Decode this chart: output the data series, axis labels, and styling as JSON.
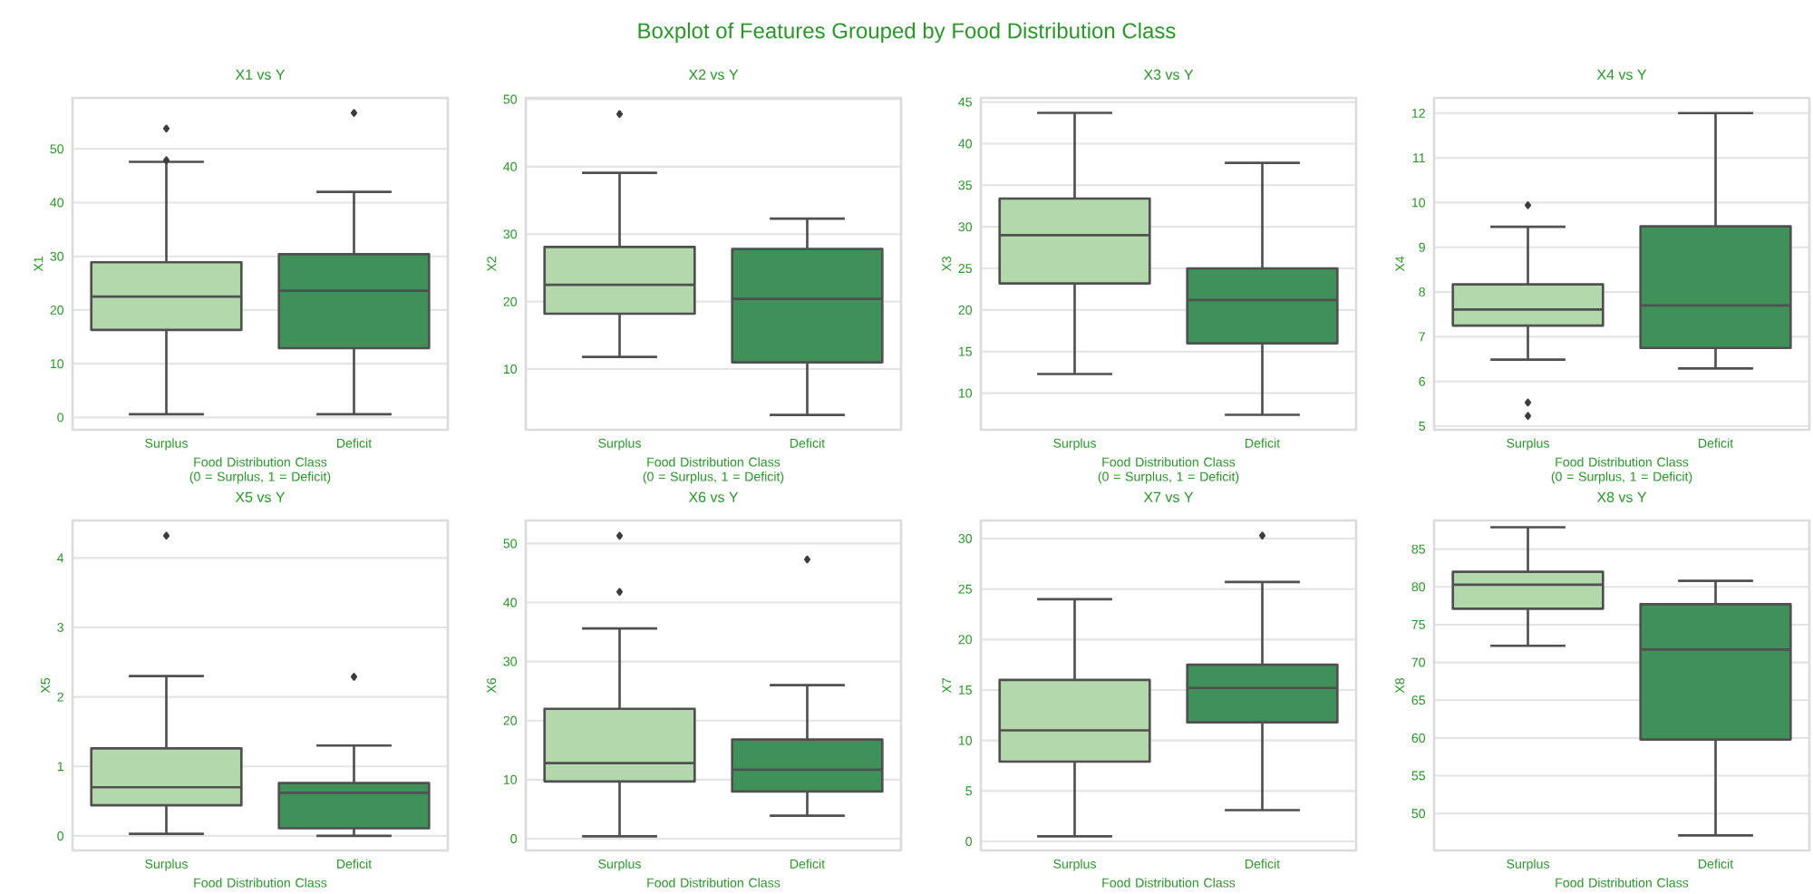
{
  "chart_data": [
    {
      "type": "box",
      "title": "X1 vs Y",
      "xlabel": "Food Distribution Class (0 = Surplus, 1 = Deficit)",
      "ylabel": "X1",
      "annotations": [
        "Boxplot of Features Grouped by Food Distribution Class"
      ],
      "categories": [
        "Surplus",
        "Deficit"
      ],
      "colors": [
        "#b2d8ab",
        "#3f9159"
      ],
      "ylim": [
        -2.3,
        59.5
      ],
      "yticks": [
        0,
        10,
        20,
        30,
        40,
        50
      ],
      "grid": "y",
      "marker": "diamond",
      "boxes": [
        {
          "low": 0.6,
          "q1": 16.3,
          "median": 22.5,
          "q3": 28.9,
          "high": 47.6,
          "outliers": [
            53.8,
            47.9
          ]
        },
        {
          "low": 0.6,
          "q1": 12.9,
          "median": 23.6,
          "q3": 30.4,
          "high": 42.0,
          "outliers": [
            56.7
          ]
        }
      ]
    },
    {
      "type": "box",
      "title": "X2 vs Y",
      "xlabel": "Food Distribution Class (0 = Surplus, 1 = Deficit)",
      "ylabel": "X2",
      "categories": [
        "Surplus",
        "Deficit"
      ],
      "colors": [
        "#b2d8ab",
        "#3f9159"
      ],
      "ylim": [
        1,
        50.2
      ],
      "yticks": [
        10,
        20,
        30,
        40,
        50
      ],
      "grid": "y",
      "marker": "diamond",
      "boxes": [
        {
          "low": 11.8,
          "q1": 18.2,
          "median": 22.5,
          "q3": 28.1,
          "high": 39.1,
          "outliers": [
            47.8
          ]
        },
        {
          "low": 3.2,
          "q1": 11.0,
          "median": 20.4,
          "q3": 27.8,
          "high": 32.3
        }
      ]
    },
    {
      "type": "box",
      "title": "X3 vs Y",
      "xlabel": "Food Distribution Class (0 = Surplus, 1 = Deficit)",
      "ylabel": "X3",
      "categories": [
        "Surplus",
        "Deficit"
      ],
      "colors": [
        "#b2d8ab",
        "#3f9159"
      ],
      "ylim": [
        5.6,
        45.5
      ],
      "yticks": [
        10,
        15,
        20,
        25,
        30,
        35,
        40,
        45
      ],
      "grid": "y",
      "marker": "diamond",
      "boxes": [
        {
          "low": 12.3,
          "q1": 23.2,
          "median": 29.0,
          "q3": 33.4,
          "high": 43.7
        },
        {
          "low": 7.4,
          "q1": 16.0,
          "median": 21.2,
          "q3": 25.0,
          "high": 37.7
        }
      ]
    },
    {
      "type": "box",
      "title": "X4 vs Y",
      "xlabel": "Food Distribution Class (0 = Surplus, 1 = Deficit)",
      "ylabel": "X4",
      "categories": [
        "Surplus",
        "Deficit"
      ],
      "colors": [
        "#b2d8ab",
        "#3f9159"
      ],
      "ylim": [
        4.92,
        12.34
      ],
      "yticks": [
        5,
        6,
        7,
        8,
        9,
        10,
        11,
        12
      ],
      "grid": "y",
      "marker": "diamond",
      "boxes": [
        {
          "low": 6.49,
          "q1": 7.25,
          "median": 7.61,
          "q3": 8.17,
          "high": 9.46,
          "outliers": [
            9.94,
            5.53,
            5.23
          ]
        },
        {
          "low": 6.29,
          "q1": 6.75,
          "median": 7.7,
          "q3": 9.47,
          "high": 12.0
        }
      ]
    },
    {
      "type": "box",
      "title": "X5 vs Y",
      "xlabel": "Food Distribution Class",
      "ylabel": "X5",
      "categories": [
        "Surplus",
        "Deficit"
      ],
      "colors": [
        "#b2d8ab",
        "#3f9159"
      ],
      "ylim": [
        -0.21,
        4.54
      ],
      "yticks": [
        0,
        1,
        2,
        3,
        4
      ],
      "grid": "y",
      "marker": "diamond",
      "boxes": [
        {
          "low": 0.03,
          "q1": 0.44,
          "median": 0.7,
          "q3": 1.26,
          "high": 2.3,
          "outliers": [
            4.32
          ]
        },
        {
          "low": 0.0,
          "q1": 0.11,
          "median": 0.62,
          "q3": 0.76,
          "high": 1.3,
          "outliers": [
            2.29
          ]
        }
      ]
    },
    {
      "type": "box",
      "title": "X6 vs Y",
      "xlabel": "Food Distribution Class",
      "ylabel": "X6",
      "categories": [
        "Surplus",
        "Deficit"
      ],
      "colors": [
        "#b2d8ab",
        "#3f9159"
      ],
      "ylim": [
        -2.0,
        53.9
      ],
      "yticks": [
        0,
        10,
        20,
        30,
        40,
        50
      ],
      "grid": "y",
      "marker": "diamond",
      "boxes": [
        {
          "low": 0.4,
          "q1": 9.7,
          "median": 12.8,
          "q3": 22.0,
          "high": 35.6,
          "outliers": [
            41.8,
            51.3
          ]
        },
        {
          "low": 3.9,
          "q1": 8.0,
          "median": 11.7,
          "q3": 16.8,
          "high": 26.0,
          "outliers": [
            47.3
          ]
        }
      ]
    },
    {
      "type": "box",
      "title": "X7 vs Y",
      "xlabel": "Food Distribution Class",
      "ylabel": "X7",
      "categories": [
        "Surplus",
        "Deficit"
      ],
      "colors": [
        "#b2d8ab",
        "#3f9159"
      ],
      "ylim": [
        -0.9,
        31.8
      ],
      "yticks": [
        0,
        5,
        10,
        15,
        20,
        25,
        30
      ],
      "grid": "y",
      "marker": "diamond",
      "boxes": [
        {
          "low": 0.5,
          "q1": 7.9,
          "median": 11.0,
          "q3": 16.0,
          "high": 24.0
        },
        {
          "low": 3.1,
          "q1": 11.8,
          "median": 15.2,
          "q3": 17.5,
          "high": 25.7,
          "outliers": [
            30.3
          ]
        }
      ]
    },
    {
      "type": "box",
      "title": "X8 vs Y",
      "xlabel": "Food Distribution Class",
      "ylabel": "X8",
      "categories": [
        "Surplus",
        "Deficit"
      ],
      "colors": [
        "#b2d8ab",
        "#3f9159"
      ],
      "ylim": [
        45.1,
        88.8
      ],
      "yticks": [
        50,
        55,
        60,
        65,
        70,
        75,
        80,
        85
      ],
      "grid": "y",
      "marker": "diamond",
      "boxes": [
        {
          "low": 72.2,
          "q1": 77.1,
          "median": 80.3,
          "q3": 82.0,
          "high": 87.9
        },
        {
          "low": 47.1,
          "q1": 59.8,
          "median": 71.7,
          "q3": 77.7,
          "high": 80.8
        }
      ]
    }
  ]
}
